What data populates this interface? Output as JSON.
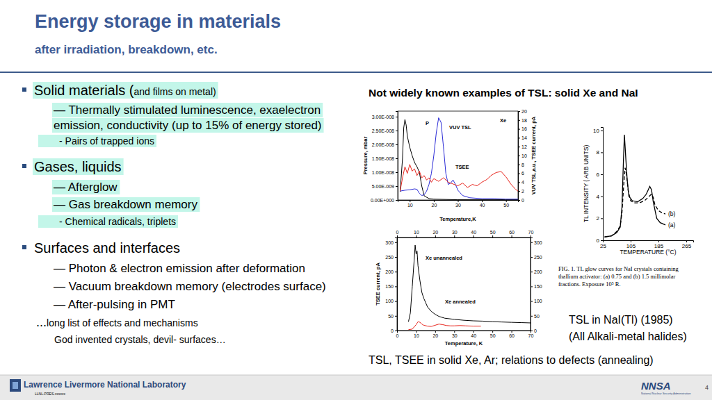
{
  "header": {
    "title": "Energy storage  in materials",
    "subtitle": "after irradiation, breakdown, etc."
  },
  "bullets": [
    {
      "kind": "heading",
      "text": "Solid materials (",
      "note": "and films on metal)",
      "highlighted": true
    },
    {
      "kind": "item",
      "text": "— Thermally stimulated luminescence, exaelectron",
      "highlighted": true
    },
    {
      "kind": "continuation",
      "text": "emission, conductivity (up to 15% of energy stored)",
      "highlighted": true
    },
    {
      "kind": "note",
      "text": "- Pairs of trapped ions",
      "highlighted": true
    },
    {
      "kind": "heading",
      "text": "Gases, liquids",
      "highlighted": true
    },
    {
      "kind": "item",
      "text": "— Afterglow",
      "highlighted": true
    },
    {
      "kind": "item",
      "text": "— Gas  breakdown memory",
      "highlighted": true
    },
    {
      "kind": "note",
      "text": "- Chemical radicals, triplets",
      "highlighted": true
    },
    {
      "kind": "heading",
      "text": "Surfaces and interfaces",
      "highlighted": false
    },
    {
      "kind": "item",
      "text": "— Photon & electron emission after deformation",
      "highlighted": false
    },
    {
      "kind": "item",
      "text": "— Vacuum breakdown memory (electrodes surface)",
      "highlighted": false
    },
    {
      "kind": "item",
      "text": "—  After-pulsing in PMT",
      "highlighted": false
    },
    {
      "kind": "ellipsis",
      "text": "...",
      "note": "long list of effects and mechanisms",
      "highlighted": false
    },
    {
      "kind": "remark",
      "text": "God invented crystals, devil- surfaces…",
      "highlighted": false
    }
  ],
  "right_heading": "Not widely known examples of TSL: solid Xe and NaI",
  "chart_data": [
    {
      "type": "line",
      "x_label": "Temperature,K",
      "y_label": "Pressure, mbar",
      "y2_label": "VUV TSL,a.u., TSEE current, pA",
      "xlim": [
        5,
        55
      ],
      "xticks": [
        10,
        20,
        30,
        40,
        50
      ],
      "ylim": [
        0,
        3.2e-08
      ],
      "yticks": [
        {
          "value": 0,
          "label": "0.00E+000"
        },
        {
          "value": 5e-09,
          "label": "5.00E-009"
        },
        {
          "value": 1e-08,
          "label": "1.00E-008"
        },
        {
          "value": 1.5e-08,
          "label": "1.50E-008"
        },
        {
          "value": 2e-08,
          "label": "2.00E-008"
        },
        {
          "value": 2.5e-08,
          "label": "2.50E-008"
        },
        {
          "value": 3e-08,
          "label": "3.00E-008"
        }
      ],
      "y2lim": [
        0,
        20
      ],
      "y2ticks": [
        0,
        2,
        4,
        6,
        8,
        10,
        12,
        14,
        16,
        18,
        20
      ],
      "annotations": [
        "Xe"
      ],
      "series": [
        {
          "name": "P",
          "color": "#000000",
          "x": [
            6,
            7,
            7.5,
            8,
            8.5,
            9,
            10,
            11,
            12,
            13,
            14,
            15,
            16,
            18,
            20,
            25,
            30,
            40,
            50,
            55
          ],
          "values": [
            3e-09,
            1.5e-08,
            2.6e-08,
            2.9e-08,
            2.7e-08,
            2.3e-08,
            1.9e-08,
            1.6e-08,
            1.35e-08,
            1.2e-08,
            1e-08,
            5e-09,
            1.5e-09,
            5e-10,
            3e-10,
            2e-10,
            1e-10,
            1e-10,
            1e-10,
            1e-10
          ]
        },
        {
          "name": "VUV TSL",
          "color": "#2a2ad6",
          "axis": "y2",
          "x": [
            6,
            8,
            10,
            12,
            13,
            14,
            15,
            16,
            17,
            18,
            19,
            20,
            21,
            22,
            23,
            24,
            25,
            26,
            27,
            28,
            29,
            30,
            32,
            35,
            40,
            45,
            50,
            55
          ],
          "values": [
            2.0,
            2.2,
            2.3,
            2.5,
            2.4,
            1.5,
            1.0,
            1.2,
            2.0,
            3.5,
            6,
            10,
            15,
            18.5,
            17.5,
            12,
            6,
            3.5,
            3.8,
            4.5,
            3.5,
            2.2,
            1.0,
            0.5,
            0.3,
            0.3,
            0.2,
            0.2
          ]
        },
        {
          "name": "TSEE",
          "color": "#e8241c",
          "axis": "y2",
          "x": [
            6,
            7,
            8,
            9,
            10,
            11,
            12,
            13,
            14,
            15,
            16,
            17,
            18,
            19,
            20,
            22,
            24,
            26,
            28,
            30,
            32,
            34,
            36,
            38,
            40,
            42,
            44,
            46,
            48,
            50,
            52,
            54,
            55
          ],
          "values": [
            2,
            5,
            7.5,
            6,
            8,
            6.5,
            7,
            5.5,
            6.5,
            5,
            5.5,
            4.5,
            5,
            4,
            4.8,
            4.2,
            5,
            4,
            3.6,
            3.2,
            3.8,
            2.8,
            3.5,
            3.2,
            4,
            4.6,
            5.6,
            6.2,
            6.4,
            5.2,
            3.6,
            2.4,
            2
          ]
        }
      ]
    },
    {
      "type": "line",
      "x_label": "Temperature, K",
      "y_label": "TSEE current, pA",
      "xlim": [
        0,
        70
      ],
      "xticks": [
        0,
        10,
        20,
        30,
        40,
        50,
        60,
        70
      ],
      "ylim": [
        0,
        316
      ],
      "yticks": [
        0,
        50,
        100,
        150,
        200,
        250,
        300
      ],
      "y2lim": [
        0,
        316
      ],
      "y2ticks": [
        0,
        50,
        100,
        150,
        200,
        250,
        300
      ],
      "series": [
        {
          "name": "Xe unannealed",
          "color": "#000000",
          "x": [
            6,
            7,
            8,
            9,
            9.5,
            10,
            10.5,
            11,
            12,
            13,
            14,
            15,
            16,
            18,
            20,
            22,
            25,
            30,
            35,
            40,
            45,
            50,
            55,
            60,
            65,
            70
          ],
          "values": [
            30,
            60,
            150,
            240,
            290,
            260,
            270,
            220,
            170,
            130,
            110,
            95,
            80,
            65,
            55,
            48,
            42,
            38,
            35,
            33,
            32,
            30,
            29,
            28,
            27,
            26
          ]
        },
        {
          "name": "Xe annealed",
          "color": "#e8241c",
          "x": [
            6,
            8,
            10,
            11,
            12,
            13,
            14,
            16,
            18,
            20,
            22,
            24,
            26,
            28,
            30,
            33,
            36,
            40,
            44
          ],
          "values": [
            3,
            5,
            20,
            30,
            28,
            22,
            18,
            15,
            14,
            18,
            22,
            20,
            17,
            16,
            16,
            17,
            16,
            15,
            15
          ]
        }
      ]
    },
    {
      "type": "line",
      "x_label": "TEMPERATURE (°C)",
      "y_label": "TL INTENSITY ( ARB UNITS)",
      "xlim": [
        25,
        285
      ],
      "xticks": [
        25,
        105,
        185,
        265
      ],
      "ylim": [
        0,
        10.3
      ],
      "yticks": [
        0,
        2,
        4,
        6,
        8,
        10
      ],
      "caption": [
        "FIG. 1.  TL glow curves for NaI crystals containing",
        "thallium activator: (a) 0.75 and (b) 1.5 millimolar",
        "fractions. Exposure 10⁵ R."
      ],
      "series": [
        {
          "name": "(a)",
          "color": "#000000",
          "line_style": "solid",
          "x": [
            30,
            50,
            65,
            75,
            80,
            84,
            87,
            90,
            95,
            100,
            110,
            125,
            140,
            150,
            160,
            165,
            170,
            180,
            190,
            205
          ],
          "values": [
            0.3,
            0.4,
            0.7,
            1.2,
            3,
            7,
            9.6,
            8,
            5.5,
            4,
            3.6,
            3.5,
            3.8,
            4.2,
            4.9,
            4.6,
            3.5,
            2,
            1.6,
            1.4
          ]
        },
        {
          "name": "(b)",
          "color": "#000000",
          "line_style": "dashed",
          "x": [
            30,
            50,
            65,
            75,
            80,
            85,
            89,
            93,
            98,
            105,
            115,
            130,
            145,
            155,
            165,
            170,
            175,
            185,
            195,
            205
          ],
          "values": [
            0.3,
            0.4,
            0.8,
            1.3,
            2.5,
            5,
            6.6,
            6,
            4.5,
            3.6,
            3.4,
            3.4,
            3.6,
            3.9,
            4.2,
            3.9,
            3.2,
            2.7,
            2.5,
            2.4
          ]
        }
      ]
    }
  ],
  "captions": {
    "nai": [
      "TSL in NaI(Tl)  (1985)",
      "(All Alkali-metal halides)"
    ],
    "xe": "TSL, TSEE in solid Xe, Ar; relations to defects (annealing)"
  },
  "footer": {
    "org": "Lawrence Livermore National Laboratory",
    "doc_id": "LLNL-PRES-xxxxxx",
    "agency": "NNSA",
    "agency_full": "National Nuclear Security Administration",
    "page": 4
  }
}
